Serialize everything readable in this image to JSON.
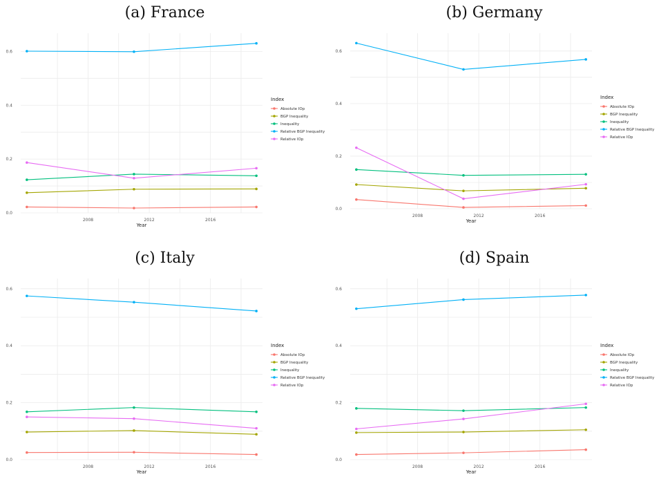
{
  "series_colors": {
    "Absolute IOp": "#F8766D",
    "BGP Inequality": "#A3A500",
    "Inequality": "#00BF7D",
    "Relative BGP Inequality": "#00B0F6",
    "Relative IOp": "#E76BF3"
  },
  "chart_data": [
    {
      "type": "line",
      "title": "(a) France",
      "xlabel": "Year",
      "ylabel": "",
      "x": [
        2004,
        2011,
        2019
      ],
      "xticks": [
        2008,
        2012,
        2016
      ],
      "xlim": [
        2003.6,
        2019.4
      ],
      "ylim": [
        0,
        0.63
      ],
      "yticks": [
        0.0,
        0.2,
        0.4,
        0.6
      ],
      "ytick_labels": [
        "0.0",
        "0.2",
        "0.4",
        "0.6"
      ],
      "grid": true,
      "legend_title": "Index",
      "legend_position": "right",
      "series": [
        {
          "name": "Absolute IOp",
          "values": [
            0.022,
            0.018,
            0.022
          ]
        },
        {
          "name": "BGP Inequality",
          "values": [
            0.075,
            0.088,
            0.089
          ]
        },
        {
          "name": "Inequality",
          "values": [
            0.123,
            0.144,
            0.138
          ]
        },
        {
          "name": "Relative BGP Inequality",
          "values": [
            0.601,
            0.599,
            0.63
          ]
        },
        {
          "name": "Relative IOp",
          "values": [
            0.187,
            0.129,
            0.166
          ]
        }
      ]
    },
    {
      "type": "line",
      "title": "(b) Germany",
      "xlabel": "Year",
      "ylabel": "",
      "x": [
        2004,
        2011,
        2019
      ],
      "xticks": [
        2008,
        2012,
        2016
      ],
      "xlim": [
        2003.6,
        2019.4
      ],
      "ylim": [
        0,
        0.63
      ],
      "yticks": [
        0.0,
        0.2,
        0.4,
        0.6
      ],
      "ytick_labels": [
        "0.0",
        "0.2",
        "0.4",
        "0.6"
      ],
      "grid": true,
      "legend_title": "Index",
      "legend_position": "right",
      "series": [
        {
          "name": "Absolute IOp",
          "values": [
            0.035,
            0.005,
            0.012
          ]
        },
        {
          "name": "BGP Inequality",
          "values": [
            0.092,
            0.068,
            0.078
          ]
        },
        {
          "name": "Inequality",
          "values": [
            0.149,
            0.127,
            0.131
          ]
        },
        {
          "name": "Relative BGP Inequality",
          "values": [
            0.63,
            0.53,
            0.568
          ]
        },
        {
          "name": "Relative IOp",
          "values": [
            0.232,
            0.038,
            0.093
          ]
        }
      ]
    },
    {
      "type": "line",
      "title": "(c) Italy",
      "xlabel": "Year",
      "ylabel": "",
      "x": [
        2004,
        2011,
        2019
      ],
      "xticks": [
        2008,
        2012,
        2016
      ],
      "xlim": [
        2003.6,
        2019.4
      ],
      "ylim": [
        0,
        0.6
      ],
      "yticks": [
        0.0,
        0.2,
        0.4,
        0.6
      ],
      "ytick_labels": [
        "0.0",
        "0.2",
        "0.4",
        "0.6"
      ],
      "grid": true,
      "legend_title": "Index",
      "legend_position": "right",
      "series": [
        {
          "name": "Absolute IOp",
          "values": [
            0.025,
            0.026,
            0.018
          ]
        },
        {
          "name": "BGP Inequality",
          "values": [
            0.097,
            0.102,
            0.089
          ]
        },
        {
          "name": "Inequality",
          "values": [
            0.168,
            0.183,
            0.168
          ]
        },
        {
          "name": "Relative BGP Inequality",
          "values": [
            0.575,
            0.553,
            0.522
          ]
        },
        {
          "name": "Relative IOp",
          "values": [
            0.15,
            0.144,
            0.11
          ]
        }
      ]
    },
    {
      "type": "line",
      "title": "(d) Spain",
      "xlabel": "Year",
      "ylabel": "",
      "x": [
        2004,
        2011,
        2019
      ],
      "xticks": [
        2008,
        2012,
        2016
      ],
      "xlim": [
        2003.6,
        2019.4
      ],
      "ylim": [
        0,
        0.6
      ],
      "yticks": [
        0.0,
        0.2,
        0.4,
        0.6
      ],
      "ytick_labels": [
        "0.0",
        "0.2",
        "0.4",
        "0.6"
      ],
      "grid": true,
      "legend_title": "Index",
      "legend_position": "right",
      "series": [
        {
          "name": "Absolute IOp",
          "values": [
            0.018,
            0.024,
            0.035
          ]
        },
        {
          "name": "BGP Inequality",
          "values": [
            0.095,
            0.097,
            0.105
          ]
        },
        {
          "name": "Inequality",
          "values": [
            0.18,
            0.172,
            0.183
          ]
        },
        {
          "name": "Relative BGP Inequality",
          "values": [
            0.53,
            0.562,
            0.578
          ]
        },
        {
          "name": "Relative IOp",
          "values": [
            0.108,
            0.143,
            0.196
          ]
        }
      ]
    }
  ]
}
